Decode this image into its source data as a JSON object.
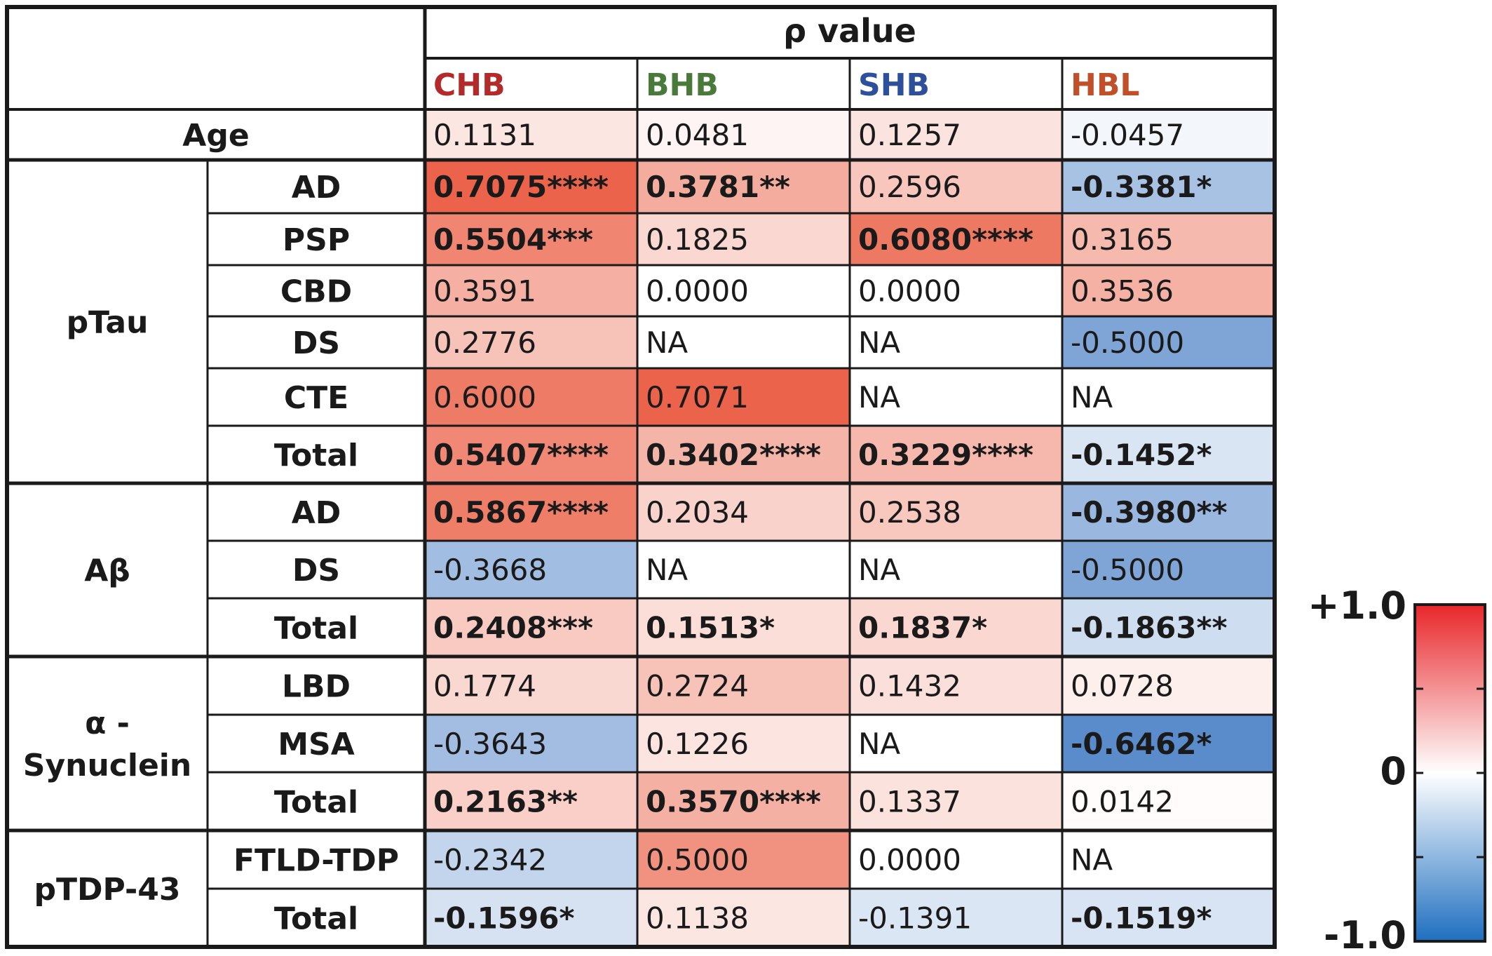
{
  "chart_data": {
    "type": "heatmap",
    "title": "ρ value",
    "columns": [
      {
        "label": "CHB",
        "color": "#b22a2a"
      },
      {
        "label": "BHB",
        "color": "#4a7a3a"
      },
      {
        "label": "SHB",
        "color": "#2e4f9a"
      },
      {
        "label": "HBL",
        "color": "#c0502a"
      }
    ],
    "rows": [
      {
        "group": "Age",
        "sub": "",
        "cells": [
          {
            "text": "0.1131",
            "rho": 0.1131,
            "bold": false
          },
          {
            "text": "0.0481",
            "rho": 0.0481,
            "bold": false
          },
          {
            "text": "0.1257",
            "rho": 0.1257,
            "bold": false
          },
          {
            "text": "-0.0457",
            "rho": -0.0457,
            "bold": false
          }
        ]
      },
      {
        "group": "pTau",
        "sub": "AD",
        "cells": [
          {
            "text": "0.7075****",
            "rho": 0.7075,
            "bold": true
          },
          {
            "text": "0.3781**",
            "rho": 0.3781,
            "bold": true
          },
          {
            "text": "0.2596",
            "rho": 0.2596,
            "bold": false
          },
          {
            "text": "-0.3381*",
            "rho": -0.3381,
            "bold": true
          }
        ]
      },
      {
        "group": "pTau",
        "sub": "PSP",
        "cells": [
          {
            "text": "0.5504***",
            "rho": 0.5504,
            "bold": true
          },
          {
            "text": "0.1825",
            "rho": 0.1825,
            "bold": false
          },
          {
            "text": "0.6080****",
            "rho": 0.608,
            "bold": true
          },
          {
            "text": "0.3165",
            "rho": 0.3165,
            "bold": false
          }
        ]
      },
      {
        "group": "pTau",
        "sub": "CBD",
        "cells": [
          {
            "text": "0.3591",
            "rho": 0.3591,
            "bold": false
          },
          {
            "text": "0.0000",
            "rho": 0.0,
            "bold": false
          },
          {
            "text": "0.0000",
            "rho": 0.0,
            "bold": false
          },
          {
            "text": "0.3536",
            "rho": 0.3536,
            "bold": false
          }
        ]
      },
      {
        "group": "pTau",
        "sub": "DS",
        "cells": [
          {
            "text": "0.2776",
            "rho": 0.2776,
            "bold": false
          },
          {
            "text": "NA",
            "rho": null,
            "bold": false
          },
          {
            "text": "NA",
            "rho": null,
            "bold": false
          },
          {
            "text": "-0.5000",
            "rho": -0.5,
            "bold": false
          }
        ]
      },
      {
        "group": "pTau",
        "sub": "CTE",
        "cells": [
          {
            "text": "0.6000",
            "rho": 0.6,
            "bold": false
          },
          {
            "text": "0.7071",
            "rho": 0.7071,
            "bold": false
          },
          {
            "text": "NA",
            "rho": null,
            "bold": false
          },
          {
            "text": "NA",
            "rho": null,
            "bold": false
          }
        ]
      },
      {
        "group": "pTau",
        "sub": "Total",
        "cells": [
          {
            "text": "0.5407****",
            "rho": 0.5407,
            "bold": true
          },
          {
            "text": "0.3402****",
            "rho": 0.3402,
            "bold": true
          },
          {
            "text": "0.3229****",
            "rho": 0.3229,
            "bold": true
          },
          {
            "text": "-0.1452*",
            "rho": -0.1452,
            "bold": true
          }
        ]
      },
      {
        "group": "Aβ",
        "sub": "AD",
        "cells": [
          {
            "text": "0.5867****",
            "rho": 0.5867,
            "bold": true
          },
          {
            "text": "0.2034",
            "rho": 0.2034,
            "bold": false
          },
          {
            "text": "0.2538",
            "rho": 0.2538,
            "bold": false
          },
          {
            "text": "-0.3980**",
            "rho": -0.398,
            "bold": true
          }
        ]
      },
      {
        "group": "Aβ",
        "sub": "DS",
        "cells": [
          {
            "text": "-0.3668",
            "rho": -0.3668,
            "bold": false
          },
          {
            "text": "NA",
            "rho": null,
            "bold": false
          },
          {
            "text": "NA",
            "rho": null,
            "bold": false
          },
          {
            "text": "-0.5000",
            "rho": -0.5,
            "bold": false
          }
        ]
      },
      {
        "group": "Aβ",
        "sub": "Total",
        "cells": [
          {
            "text": "0.2408***",
            "rho": 0.2408,
            "bold": true
          },
          {
            "text": "0.1513*",
            "rho": 0.1513,
            "bold": true
          },
          {
            "text": "0.1837*",
            "rho": 0.1837,
            "bold": true
          },
          {
            "text": "-0.1863**",
            "rho": -0.1863,
            "bold": true
          }
        ]
      },
      {
        "group": "α-Synuclein",
        "sub": "LBD",
        "cells": [
          {
            "text": "0.1774",
            "rho": 0.1774,
            "bold": false
          },
          {
            "text": "0.2724",
            "rho": 0.2724,
            "bold": false
          },
          {
            "text": "0.1432",
            "rho": 0.1432,
            "bold": false
          },
          {
            "text": "0.0728",
            "rho": 0.0728,
            "bold": false
          }
        ]
      },
      {
        "group": "α-Synuclein",
        "sub": "MSA",
        "cells": [
          {
            "text": "-0.3643",
            "rho": -0.3643,
            "bold": false
          },
          {
            "text": "0.1226",
            "rho": 0.1226,
            "bold": false
          },
          {
            "text": "NA",
            "rho": null,
            "bold": false
          },
          {
            "text": "-0.6462*",
            "rho": -0.6462,
            "bold": true
          }
        ]
      },
      {
        "group": "α-Synuclein",
        "sub": "Total",
        "cells": [
          {
            "text": "0.2163**",
            "rho": 0.2163,
            "bold": true
          },
          {
            "text": "0.3570****",
            "rho": 0.357,
            "bold": true
          },
          {
            "text": "0.1337",
            "rho": 0.1337,
            "bold": false
          },
          {
            "text": "0.0142",
            "rho": 0.0142,
            "bold": false
          }
        ]
      },
      {
        "group": "pTDP-43",
        "sub": "FTLD-TDP",
        "cells": [
          {
            "text": "-0.2342",
            "rho": -0.2342,
            "bold": false
          },
          {
            "text": "0.5000",
            "rho": 0.5,
            "bold": false
          },
          {
            "text": "0.0000",
            "rho": 0.0,
            "bold": false
          },
          {
            "text": "NA",
            "rho": null,
            "bold": false
          }
        ]
      },
      {
        "group": "pTDP-43",
        "sub": "Total",
        "cells": [
          {
            "text": "-0.1596*",
            "rho": -0.1596,
            "bold": true
          },
          {
            "text": "0.1138",
            "rho": 0.1138,
            "bold": false
          },
          {
            "text": "-0.1391",
            "rho": -0.1391,
            "bold": false
          },
          {
            "text": "-0.1519*",
            "rho": -0.1519,
            "bold": true
          }
        ]
      }
    ],
    "groups": [
      {
        "label": "Age"
      },
      {
        "label": "pTau"
      },
      {
        "label": "Aβ"
      },
      {
        "label": "α-Synuclein",
        "lines": [
          "α -",
          "Synuclein"
        ]
      },
      {
        "label": "pTDP-43"
      }
    ],
    "colorbar": {
      "max_label": "+1.0",
      "mid_label": "0",
      "min_label": "-1.0",
      "range": [
        -1.0,
        1.0
      ],
      "color_max": "#e8262a",
      "color_mid": "#ffffff",
      "color_min": "#1f6fc0"
    },
    "colors": {
      "positive": "#ea5a3f",
      "negative": "#3f78c2",
      "grid": "#1a1a1a"
    }
  }
}
